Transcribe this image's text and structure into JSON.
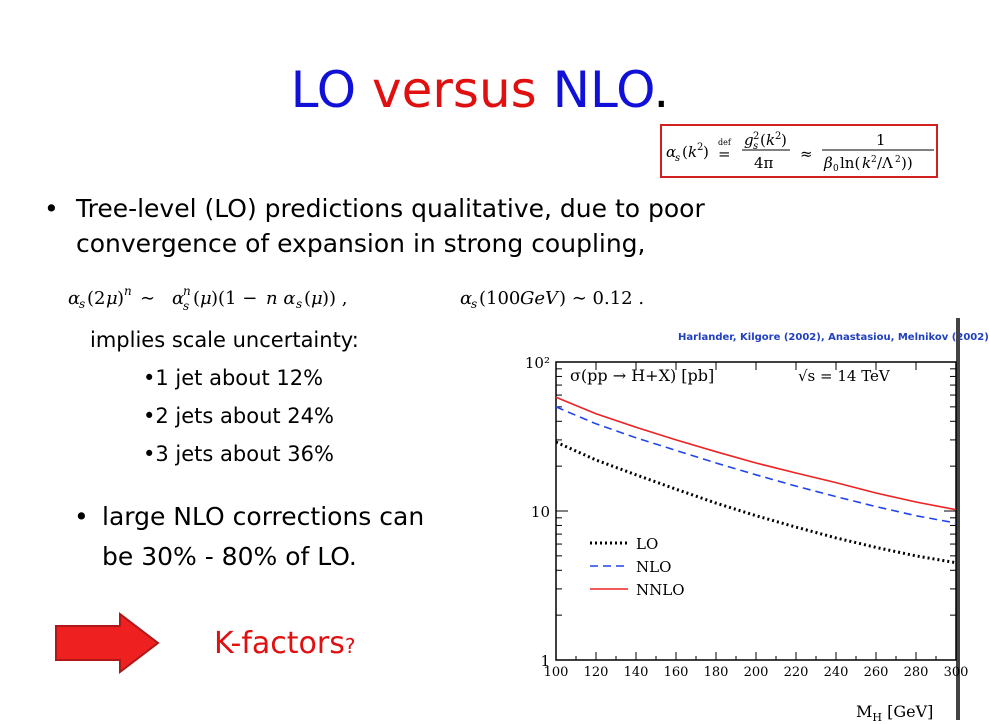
{
  "title": {
    "part1": "LO",
    "part2": " versus ",
    "part3": "NLO",
    "part4": "."
  },
  "bullets": {
    "main": {
      "line1": "Tree-level (LO) predictions qualitative, due to poor",
      "line2": "convergence of expansion in strong coupling,"
    },
    "implies": "implies scale uncertainty:",
    "sub_items": [
      "•1 jet about 12%",
      "•2 jets about 24%",
      "•3 jets about 36%"
    ],
    "nlo": {
      "line1": "large NLO corrections can",
      "line2": "be 30% - 80% of LO."
    }
  },
  "kfactors": {
    "label": "K-factors",
    "mark": "?"
  },
  "chart_data": {
    "type": "line",
    "attribution": "Harlander, Kilgore (2002), Anastasiou, Melnikov (2002)",
    "ylabel": "σ(pp → H+X) [pb]",
    "energy_label": "√s = 14 TeV",
    "xlabel": "M_H [GeV]",
    "xlim": [
      100,
      300
    ],
    "ylim": [
      1,
      100
    ],
    "yscale": "log",
    "x_ticks": [
      "100",
      "120",
      "140",
      "160",
      "180",
      "200",
      "220",
      "240",
      "260",
      "280",
      "300"
    ],
    "y_ticks": [
      "1",
      "10",
      "10²"
    ],
    "x": [
      100,
      120,
      140,
      160,
      180,
      200,
      220,
      240,
      260,
      280,
      300
    ],
    "series": [
      {
        "name": "LO",
        "style": "dotted",
        "color": "#000000",
        "values": [
          29,
          22,
          17.5,
          14,
          11.3,
          9.3,
          7.8,
          6.6,
          5.7,
          5.0,
          4.5
        ]
      },
      {
        "name": "NLO",
        "style": "dashed",
        "color": "#2244ee",
        "values": [
          50,
          38.5,
          31,
          25.5,
          21,
          17.5,
          14.7,
          12.5,
          10.7,
          9.3,
          8.3
        ]
      },
      {
        "name": "NNLO",
        "style": "solid",
        "color": "#ee2222",
        "values": [
          58,
          45,
          36.5,
          30,
          25,
          21,
          18,
          15.5,
          13.2,
          11.5,
          10.2
        ]
      }
    ],
    "legend": "bottom-left"
  },
  "colors": {
    "title_blue": "#1010d8",
    "title_red": "#e01010",
    "arrow": "#ee2020",
    "formula_box": "#d02020"
  },
  "icons": {
    "arrow": "right-arrow-icon",
    "bullet": "bullet-dot"
  }
}
